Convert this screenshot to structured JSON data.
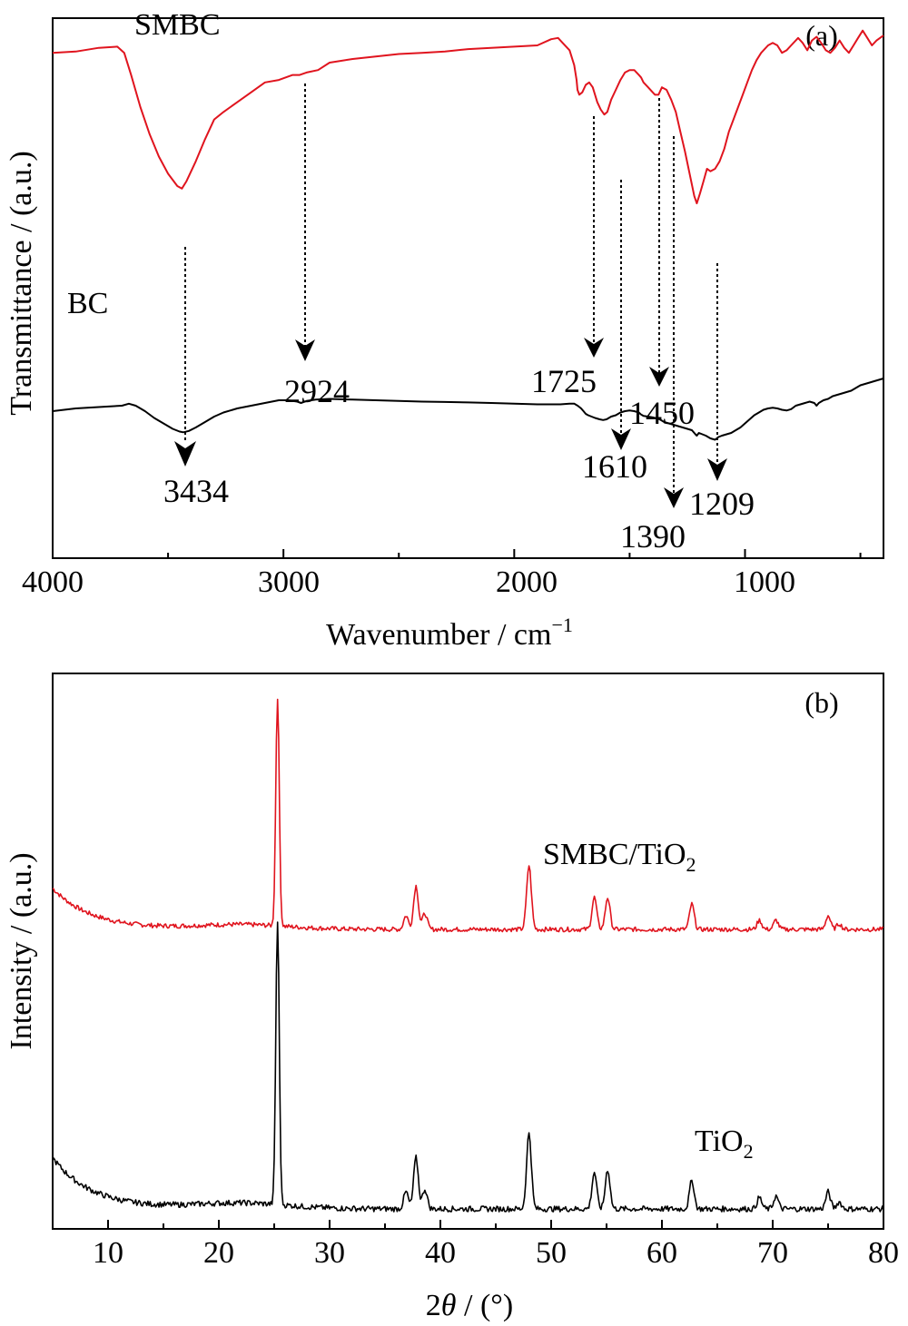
{
  "chart_data": [
    {
      "type": "line",
      "panel_label": "(a)",
      "xlabel": "Wavenumber / cm",
      "xlabel_sup": "−1",
      "ylabel": "Transmittance / (a.u.)",
      "xlim": [
        4000,
        400
      ],
      "x_reversed": true,
      "xticks": [
        4000,
        3000,
        2000,
        1000
      ],
      "y_ticks_shown": false,
      "colors": {
        "SMBC": "#e0141e",
        "BC": "#000000"
      },
      "series": [
        {
          "name": "SMBC",
          "points": [
            [
              4000,
              0.03
            ],
            [
              3900,
              0.025
            ],
            [
              3800,
              0.01
            ],
            [
              3720,
              0.005
            ],
            [
              3690,
              0.03
            ],
            [
              3660,
              0.12
            ],
            [
              3620,
              0.25
            ],
            [
              3580,
              0.36
            ],
            [
              3540,
              0.45
            ],
            [
              3500,
              0.52
            ],
            [
              3460,
              0.57
            ],
            [
              3440,
              0.58
            ],
            [
              3420,
              0.55
            ],
            [
              3380,
              0.47
            ],
            [
              3340,
              0.38
            ],
            [
              3300,
              0.3
            ],
            [
              3260,
              0.27
            ],
            [
              3200,
              0.23
            ],
            [
              3140,
              0.19
            ],
            [
              3080,
              0.15
            ],
            [
              3020,
              0.14
            ],
            [
              2960,
              0.12
            ],
            [
              2930,
              0.12
            ],
            [
              2900,
              0.11
            ],
            [
              2850,
              0.1
            ],
            [
              2800,
              0.07
            ],
            [
              2700,
              0.055
            ],
            [
              2600,
              0.045
            ],
            [
              2500,
              0.035
            ],
            [
              2400,
              0.03
            ],
            [
              2300,
              0.025
            ],
            [
              2200,
              0.015
            ],
            [
              2100,
              0.01
            ],
            [
              2000,
              0.005
            ],
            [
              1900,
              0.0
            ],
            [
              1840,
              -0.025
            ],
            [
              1810,
              -0.03
            ],
            [
              1790,
              -0.01
            ],
            [
              1760,
              0.02
            ],
            [
              1740,
              0.08
            ],
            [
              1730,
              0.14
            ],
            [
              1726,
              0.18
            ],
            [
              1718,
              0.2
            ],
            [
              1705,
              0.19
            ],
            [
              1690,
              0.16
            ],
            [
              1675,
              0.15
            ],
            [
              1660,
              0.17
            ],
            [
              1640,
              0.23
            ],
            [
              1625,
              0.26
            ],
            [
              1610,
              0.28
            ],
            [
              1597,
              0.27
            ],
            [
              1580,
              0.22
            ],
            [
              1560,
              0.18
            ],
            [
              1540,
              0.14
            ],
            [
              1520,
              0.11
            ],
            [
              1500,
              0.1
            ],
            [
              1480,
              0.1
            ],
            [
              1460,
              0.12
            ],
            [
              1450,
              0.13
            ],
            [
              1440,
              0.15
            ],
            [
              1420,
              0.17
            ],
            [
              1400,
              0.19
            ],
            [
              1390,
              0.2
            ],
            [
              1375,
              0.2
            ],
            [
              1360,
              0.17
            ],
            [
              1340,
              0.18
            ],
            [
              1320,
              0.22
            ],
            [
              1300,
              0.27
            ],
            [
              1280,
              0.35
            ],
            [
              1260,
              0.43
            ],
            [
              1240,
              0.52
            ],
            [
              1220,
              0.61
            ],
            [
              1209,
              0.64
            ],
            [
              1195,
              0.6
            ],
            [
              1180,
              0.55
            ],
            [
              1165,
              0.5
            ],
            [
              1150,
              0.51
            ],
            [
              1130,
              0.5
            ],
            [
              1110,
              0.47
            ],
            [
              1090,
              0.42
            ],
            [
              1070,
              0.35
            ],
            [
              1050,
              0.3
            ],
            [
              1030,
              0.25
            ],
            [
              1010,
              0.2
            ],
            [
              990,
              0.15
            ],
            [
              970,
              0.1
            ],
            [
              950,
              0.06
            ],
            [
              930,
              0.03
            ],
            [
              900,
              0.0
            ],
            [
              880,
              -0.01
            ],
            [
              860,
              0.0
            ],
            [
              840,
              0.03
            ],
            [
              820,
              0.02
            ],
            [
              800,
              0.0
            ],
            [
              770,
              -0.03
            ],
            [
              750,
              -0.01
            ],
            [
              730,
              0.02
            ],
            [
              710,
              -0.02
            ],
            [
              690,
              -0.035
            ],
            [
              670,
              -0.01
            ],
            [
              650,
              0.02
            ],
            [
              630,
              0.03
            ],
            [
              610,
              0.01
            ],
            [
              590,
              -0.02
            ],
            [
              570,
              0.01
            ],
            [
              550,
              0.03
            ],
            [
              530,
              0.0
            ],
            [
              510,
              -0.03
            ],
            [
              490,
              -0.06
            ],
            [
              470,
              -0.03
            ],
            [
              450,
              0.0
            ],
            [
              430,
              -0.02
            ],
            [
              400,
              -0.04
            ]
          ]
        },
        {
          "name": "BC",
          "points": [
            [
              4000,
              0.62
            ],
            [
              3900,
              0.6
            ],
            [
              3800,
              0.59
            ],
            [
              3700,
              0.58
            ],
            [
              3670,
              0.565
            ],
            [
              3640,
              0.58
            ],
            [
              3600,
              0.62
            ],
            [
              3560,
              0.67
            ],
            [
              3520,
              0.71
            ],
            [
              3480,
              0.75
            ],
            [
              3450,
              0.77
            ],
            [
              3434,
              0.775
            ],
            [
              3410,
              0.765
            ],
            [
              3380,
              0.74
            ],
            [
              3340,
              0.7
            ],
            [
              3300,
              0.66
            ],
            [
              3260,
              0.63
            ],
            [
              3200,
              0.6
            ],
            [
              3140,
              0.58
            ],
            [
              3080,
              0.56
            ],
            [
              3020,
              0.54
            ],
            [
              2980,
              0.54
            ],
            [
              2940,
              0.55
            ],
            [
              2924,
              0.56
            ],
            [
              2900,
              0.545
            ],
            [
              2860,
              0.535
            ],
            [
              2800,
              0.53
            ],
            [
              2700,
              0.535
            ],
            [
              2600,
              0.54
            ],
            [
              2500,
              0.545
            ],
            [
              2400,
              0.55
            ],
            [
              2300,
              0.553
            ],
            [
              2200,
              0.556
            ],
            [
              2100,
              0.56
            ],
            [
              2000,
              0.565
            ],
            [
              1900,
              0.57
            ],
            [
              1800,
              0.57
            ],
            [
              1760,
              0.565
            ],
            [
              1740,
              0.565
            ],
            [
              1725,
              0.58
            ],
            [
              1710,
              0.6
            ],
            [
              1700,
              0.62
            ],
            [
              1690,
              0.64
            ],
            [
              1680,
              0.65
            ],
            [
              1665,
              0.66
            ],
            [
              1650,
              0.67
            ],
            [
              1630,
              0.68
            ],
            [
              1615,
              0.685
            ],
            [
              1600,
              0.68
            ],
            [
              1580,
              0.66
            ],
            [
              1560,
              0.65
            ],
            [
              1540,
              0.63
            ],
            [
              1520,
              0.62
            ],
            [
              1500,
              0.615
            ],
            [
              1480,
              0.62
            ],
            [
              1460,
              0.63
            ],
            [
              1450,
              0.645
            ],
            [
              1440,
              0.655
            ],
            [
              1420,
              0.66
            ],
            [
              1400,
              0.665
            ],
            [
              1390,
              0.67
            ],
            [
              1370,
              0.68
            ],
            [
              1350,
              0.7
            ],
            [
              1330,
              0.71
            ],
            [
              1310,
              0.72
            ],
            [
              1290,
              0.73
            ],
            [
              1270,
              0.74
            ],
            [
              1250,
              0.75
            ],
            [
              1230,
              0.76
            ],
            [
              1215,
              0.79
            ],
            [
              1209,
              0.8
            ],
            [
              1200,
              0.78
            ],
            [
              1185,
              0.79
            ],
            [
              1170,
              0.8
            ],
            [
              1150,
              0.82
            ],
            [
              1130,
              0.83
            ],
            [
              1115,
              0.81
            ],
            [
              1100,
              0.8
            ],
            [
              1080,
              0.79
            ],
            [
              1060,
              0.78
            ],
            [
              1040,
              0.76
            ],
            [
              1020,
              0.74
            ],
            [
              1000,
              0.71
            ],
            [
              980,
              0.68
            ],
            [
              960,
              0.65
            ],
            [
              940,
              0.63
            ],
            [
              920,
              0.61
            ],
            [
              900,
              0.6
            ],
            [
              880,
              0.595
            ],
            [
              860,
              0.6
            ],
            [
              840,
              0.61
            ],
            [
              820,
              0.615
            ],
            [
              800,
              0.605
            ],
            [
              780,
              0.58
            ],
            [
              760,
              0.57
            ],
            [
              740,
              0.56
            ],
            [
              720,
              0.55
            ],
            [
              700,
              0.56
            ],
            [
              690,
              0.58
            ],
            [
              680,
              0.56
            ],
            [
              660,
              0.54
            ],
            [
              640,
              0.53
            ],
            [
              620,
              0.51
            ],
            [
              600,
              0.5
            ],
            [
              580,
              0.49
            ],
            [
              560,
              0.48
            ],
            [
              540,
              0.47
            ],
            [
              520,
              0.45
            ],
            [
              500,
              0.43
            ],
            [
              480,
              0.42
            ],
            [
              460,
              0.41
            ],
            [
              440,
              0.4
            ],
            [
              420,
              0.39
            ],
            [
              400,
              0.38
            ]
          ]
        }
      ],
      "series_labels": [
        "SMBC",
        "BC"
      ],
      "annotations": [
        {
          "label": "3434",
          "x": 3434
        },
        {
          "label": "2924",
          "x": 2924
        },
        {
          "label": "1725",
          "x": 1725
        },
        {
          "label": "1610",
          "x": 1610
        },
        {
          "label": "1450",
          "x": 1450
        },
        {
          "label": "1390",
          "x": 1390
        },
        {
          "label": "1209",
          "x": 1209
        }
      ]
    },
    {
      "type": "line",
      "panel_label": "(b)",
      "xlabel_parts": [
        "2",
        "θ",
        " / (°)"
      ],
      "ylabel": "Intensity / (a.u.)",
      "xlim": [
        5,
        80
      ],
      "xticks": [
        10,
        20,
        30,
        40,
        50,
        60,
        70,
        80
      ],
      "y_ticks_shown": false,
      "colors": {
        "SMBC/TiO2": "#e0141e",
        "TiO2": "#000000"
      },
      "peaks_2theta": [
        25.3,
        36.9,
        37.8,
        38.6,
        48.0,
        53.9,
        55.1,
        62.7,
        68.8,
        70.3,
        75.0,
        76.0
      ],
      "series": [
        {
          "name": "SMBC/TiO2",
          "offset": 0.0,
          "peaks": [
            [
              25.3,
              1.0
            ],
            [
              36.9,
              0.06
            ],
            [
              37.8,
              0.19
            ],
            [
              38.6,
              0.07
            ],
            [
              48.0,
              0.28
            ],
            [
              53.9,
              0.14
            ],
            [
              55.1,
              0.14
            ],
            [
              62.7,
              0.11
            ],
            [
              68.8,
              0.04
            ],
            [
              70.3,
              0.04
            ],
            [
              75.0,
              0.06
            ],
            [
              76.0,
              0.025
            ]
          ],
          "baseline_start": 0.18
        },
        {
          "name": "TiO2",
          "offset": 1.0,
          "peaks": [
            [
              25.3,
              1.0
            ],
            [
              36.9,
              0.06
            ],
            [
              37.8,
              0.18
            ],
            [
              38.6,
              0.07
            ],
            [
              48.0,
              0.27
            ],
            [
              53.9,
              0.13
            ],
            [
              55.1,
              0.14
            ],
            [
              62.7,
              0.1
            ],
            [
              68.8,
              0.04
            ],
            [
              70.3,
              0.045
            ],
            [
              75.0,
              0.06
            ],
            [
              76.0,
              0.025
            ]
          ],
          "baseline_start": 0.18
        }
      ],
      "series_labels": [
        "SMBC/TiO",
        "TiO"
      ],
      "series_label_sub": "2"
    }
  ]
}
